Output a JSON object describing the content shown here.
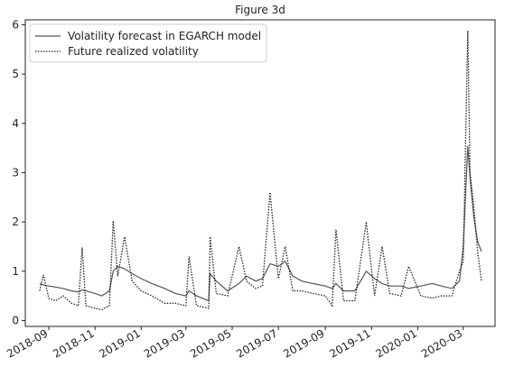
{
  "chart_data": {
    "type": "line",
    "title": "Figure 3d",
    "x": [
      "2018-08-20",
      "2018-08-25",
      "2018-09-01",
      "2018-09-10",
      "2018-09-20",
      "2018-10-01",
      "2018-10-10",
      "2018-10-15",
      "2018-10-20",
      "2018-11-01",
      "2018-11-10",
      "2018-11-20",
      "2018-11-25",
      "2018-12-01",
      "2018-12-10",
      "2018-12-20",
      "2019-01-01",
      "2019-01-15",
      "2019-02-01",
      "2019-02-15",
      "2019-03-01",
      "2019-03-05",
      "2019-03-15",
      "2019-03-31",
      "2019-04-02",
      "2019-04-10",
      "2019-04-25",
      "2019-05-10",
      "2019-05-20",
      "2019-06-01",
      "2019-06-10",
      "2019-06-20",
      "2019-07-01",
      "2019-07-10",
      "2019-07-20",
      "2019-08-01",
      "2019-08-15",
      "2019-09-01",
      "2019-09-10",
      "2019-09-15",
      "2019-09-25",
      "2019-10-10",
      "2019-10-25",
      "2019-11-05",
      "2019-11-15",
      "2019-11-25",
      "2019-12-10",
      "2019-12-20",
      "2020-01-05",
      "2020-01-20",
      "2020-02-01",
      "2020-02-15",
      "2020-02-25",
      "2020-03-01",
      "2020-03-07",
      "2020-03-10",
      "2020-03-15",
      "2020-03-20",
      "2020-03-25"
    ],
    "series": [
      {
        "name": "Volatility forecast in EGARCH model",
        "color": "#555555",
        "linestyle": "solid",
        "values": [
          0.75,
          0.72,
          0.7,
          0.68,
          0.65,
          0.6,
          0.58,
          0.62,
          0.6,
          0.55,
          0.5,
          0.6,
          1.0,
          1.1,
          1.05,
          0.95,
          0.85,
          0.75,
          0.65,
          0.55,
          0.5,
          0.6,
          0.5,
          0.4,
          0.95,
          0.8,
          0.6,
          0.75,
          0.9,
          0.8,
          0.85,
          1.15,
          1.1,
          1.2,
          0.9,
          0.8,
          0.75,
          0.7,
          0.65,
          0.75,
          0.6,
          0.6,
          1.0,
          0.85,
          0.75,
          0.7,
          0.7,
          0.65,
          0.7,
          0.75,
          0.7,
          0.65,
          0.8,
          1.5,
          3.55,
          2.9,
          2.1,
          1.6,
          1.4
        ]
      },
      {
        "name": "Future realized volatility",
        "color": "#222222",
        "linestyle": "dotted",
        "values": [
          0.6,
          0.93,
          0.45,
          0.4,
          0.5,
          0.35,
          0.3,
          1.48,
          0.3,
          0.25,
          0.22,
          0.3,
          2.02,
          0.9,
          1.7,
          0.8,
          0.6,
          0.5,
          0.35,
          0.35,
          0.3,
          1.3,
          0.3,
          0.25,
          1.7,
          0.55,
          0.5,
          1.5,
          0.8,
          0.65,
          0.7,
          2.6,
          0.85,
          1.5,
          0.6,
          0.6,
          0.55,
          0.5,
          0.3,
          1.85,
          0.4,
          0.4,
          2.0,
          0.5,
          1.5,
          0.55,
          0.5,
          1.1,
          0.5,
          0.45,
          0.5,
          0.5,
          1.0,
          1.2,
          5.88,
          3.0,
          2.3,
          1.4,
          0.8
        ]
      }
    ],
    "xlim": [
      "2018-08-01",
      "2020-04-12"
    ],
    "xticks": [
      "2018-09",
      "2018-11",
      "2019-01",
      "2019-03",
      "2019-05",
      "2019-07",
      "2019-09",
      "2019-11",
      "2020-01",
      "2020-03"
    ],
    "ylim": [
      -0.12,
      6.1
    ],
    "yticks": [
      0,
      1,
      2,
      3,
      4,
      5,
      6
    ],
    "legend": "upper left"
  }
}
